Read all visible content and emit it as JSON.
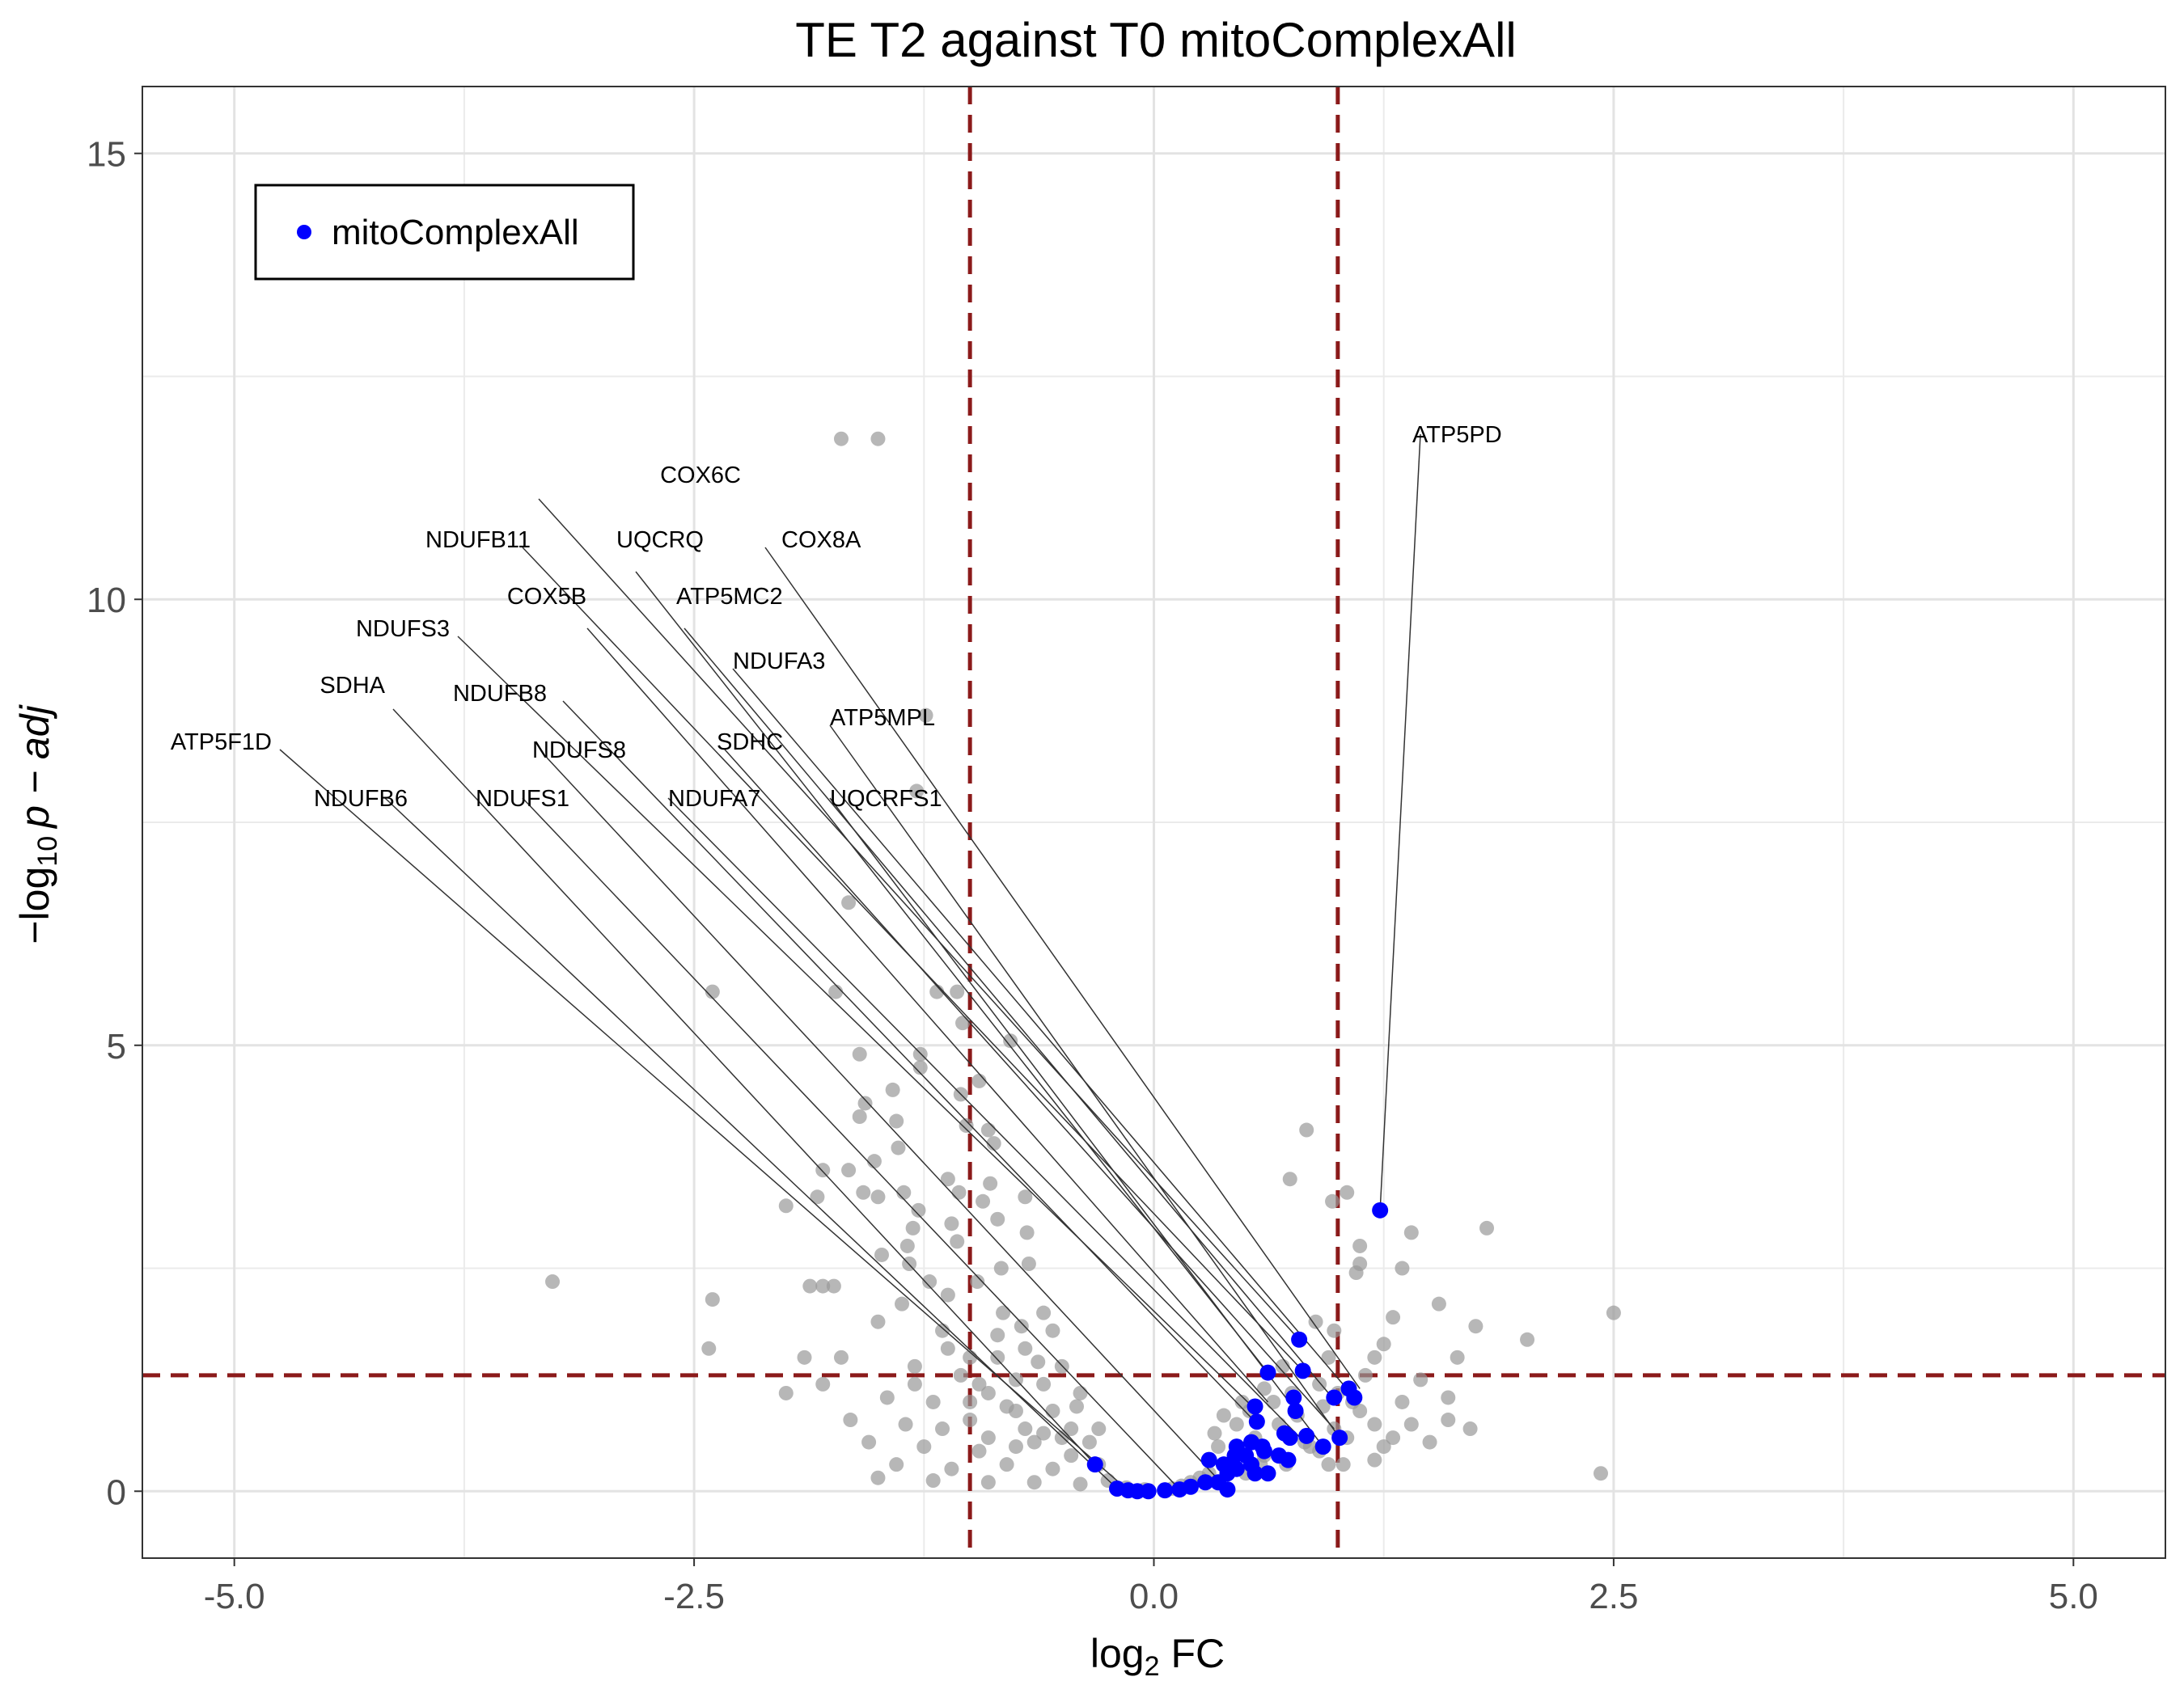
{
  "chart_data": {
    "type": "scatter",
    "title": "TE T2 against T0 mitoComplexAll",
    "xlabel": {
      "main": "log",
      "sub": "2",
      "rest": " FC"
    },
    "ylabel": {
      "prefix": "−log",
      "sub": "10",
      "italic": "p − adj"
    },
    "xlim": [
      -5.5,
      5.5
    ],
    "ylim": [
      -0.75,
      15.75
    ],
    "x_ticks": [
      {
        "value": -5,
        "label": "-5.0"
      },
      {
        "value": -2.5,
        "label": "-2.5"
      },
      {
        "value": 0,
        "label": "0.0"
      },
      {
        "value": 2.5,
        "label": "2.5"
      },
      {
        "value": 5,
        "label": "5.0"
      }
    ],
    "y_ticks": [
      {
        "value": 0,
        "label": "0"
      },
      {
        "value": 5,
        "label": "5"
      },
      {
        "value": 10,
        "label": "10"
      },
      {
        "value": 15,
        "label": "15"
      }
    ],
    "grid": true,
    "thresholds": {
      "fc": [
        -1,
        1
      ],
      "p": 1.3,
      "color": "#8b1a1a"
    },
    "legend": {
      "position": "top-left",
      "entries": [
        {
          "label": "mitoComplexAll",
          "color": "#0000ff"
        }
      ]
    },
    "series": [
      {
        "name": "background",
        "color": "#999999",
        "points": [
          [
            -1.7,
            11.8
          ],
          [
            -1.5,
            11.8
          ],
          [
            -1.24,
            8.7
          ],
          [
            -1.29,
            7.85
          ],
          [
            -1.66,
            6.6
          ],
          [
            -2.4,
            5.6
          ],
          [
            -1.73,
            5.6
          ],
          [
            -1.18,
            5.6
          ],
          [
            -1.07,
            5.6
          ],
          [
            -0.78,
            5.05
          ],
          [
            -1.04,
            5.25
          ],
          [
            -1.6,
            4.9
          ],
          [
            -1.27,
            4.9
          ],
          [
            -1.27,
            4.75
          ],
          [
            -1.42,
            4.5
          ],
          [
            -1.05,
            4.45
          ],
          [
            -0.95,
            4.6
          ],
          [
            -1.57,
            4.35
          ],
          [
            -1.6,
            4.2
          ],
          [
            -1.4,
            4.15
          ],
          [
            -1.02,
            4.1
          ],
          [
            -0.9,
            4.05
          ],
          [
            -0.87,
            3.9
          ],
          [
            -1.39,
            3.85
          ],
          [
            -1.52,
            3.7
          ],
          [
            -1.8,
            3.6
          ],
          [
            -1.66,
            3.6
          ],
          [
            -1.12,
            3.5
          ],
          [
            -0.89,
            3.45
          ],
          [
            -1.5,
            3.3
          ],
          [
            -1.36,
            3.35
          ],
          [
            -1.06,
            3.35
          ],
          [
            -0.93,
            3.25
          ],
          [
            -0.7,
            3.3
          ],
          [
            -2.0,
            3.2
          ],
          [
            -1.83,
            3.3
          ],
          [
            -1.58,
            3.35
          ],
          [
            -1.28,
            3.15
          ],
          [
            -0.85,
            3.05
          ],
          [
            -1.31,
            2.95
          ],
          [
            -1.1,
            3.0
          ],
          [
            -0.69,
            2.9
          ],
          [
            -1.34,
            2.75
          ],
          [
            -1.07,
            2.8
          ],
          [
            -1.48,
            2.65
          ],
          [
            -1.33,
            2.55
          ],
          [
            -0.83,
            2.5
          ],
          [
            -1.22,
            2.35
          ],
          [
            -0.96,
            2.35
          ],
          [
            -1.87,
            2.3
          ],
          [
            -1.8,
            2.3
          ],
          [
            -1.74,
            2.3
          ],
          [
            -1.37,
            2.1
          ],
          [
            -1.12,
            2.2
          ],
          [
            -0.68,
            2.55
          ],
          [
            -0.6,
            2.0
          ],
          [
            -2.4,
            2.15
          ],
          [
            -3.27,
            2.35
          ],
          [
            -2.42,
            1.6
          ],
          [
            -1.5,
            1.9
          ],
          [
            -1.15,
            1.8
          ],
          [
            -0.85,
            1.75
          ],
          [
            -0.55,
            1.8
          ],
          [
            -1.9,
            1.5
          ],
          [
            -1.7,
            1.5
          ],
          [
            -1.3,
            1.4
          ],
          [
            -1.05,
            1.3
          ],
          [
            -0.5,
            1.4
          ],
          [
            -2.0,
            1.1
          ],
          [
            -1.8,
            1.2
          ],
          [
            -1.45,
            1.05
          ],
          [
            -1.2,
            1.0
          ],
          [
            -0.9,
            1.1
          ],
          [
            -0.4,
            1.1
          ],
          [
            -1.65,
            0.8
          ],
          [
            -1.35,
            0.75
          ],
          [
            -1.0,
            0.8
          ],
          [
            -0.75,
            0.9
          ],
          [
            -0.3,
            0.7
          ],
          [
            -1.55,
            0.55
          ],
          [
            -1.25,
            0.5
          ],
          [
            -0.95,
            0.45
          ],
          [
            -0.65,
            0.55
          ],
          [
            -0.45,
            0.4
          ],
          [
            -1.4,
            0.3
          ],
          [
            -1.1,
            0.25
          ],
          [
            -0.8,
            0.3
          ],
          [
            -0.55,
            0.25
          ],
          [
            -0.3,
            0.3
          ],
          [
            -1.5,
            0.15
          ],
          [
            -1.2,
            0.12
          ],
          [
            -0.9,
            0.1
          ],
          [
            -0.65,
            0.1
          ],
          [
            -0.4,
            0.08
          ],
          [
            -0.25,
            0.12
          ],
          [
            -0.15,
            0.04
          ],
          [
            -0.05,
            0.02
          ],
          [
            -0.85,
            1.5
          ],
          [
            -0.7,
            1.6
          ],
          [
            -0.6,
            1.2
          ],
          [
            -1.0,
            1.5
          ],
          [
            -0.75,
            1.25
          ],
          [
            -0.9,
            0.6
          ],
          [
            -0.7,
            0.7
          ],
          [
            -0.6,
            0.65
          ],
          [
            -0.5,
            0.6
          ],
          [
            -0.55,
            0.9
          ],
          [
            -0.8,
            0.95
          ],
          [
            -1.15,
            0.7
          ],
          [
            -1.0,
            1.0
          ],
          [
            -0.95,
            1.2
          ],
          [
            -0.75,
            0.5
          ],
          [
            -0.45,
            0.7
          ],
          [
            -1.3,
            1.2
          ],
          [
            -1.12,
            1.6
          ],
          [
            -0.82,
            2.0
          ],
          [
            -0.72,
            1.85
          ],
          [
            -0.63,
            1.45
          ],
          [
            -0.42,
            0.95
          ],
          [
            -0.35,
            0.55
          ],
          [
            0.83,
            4.05
          ],
          [
            0.74,
            3.5
          ],
          [
            0.97,
            3.25
          ],
          [
            1.05,
            3.35
          ],
          [
            1.12,
            2.55
          ],
          [
            1.12,
            2.75
          ],
          [
            1.1,
            2.45
          ],
          [
            1.4,
            2.9
          ],
          [
            1.81,
            2.95
          ],
          [
            1.35,
            2.5
          ],
          [
            1.55,
            2.1
          ],
          [
            1.75,
            1.85
          ],
          [
            1.65,
            1.5
          ],
          [
            2.5,
            2.0
          ],
          [
            2.03,
            1.7
          ],
          [
            2.43,
            0.2
          ],
          [
            1.3,
            1.95
          ],
          [
            1.25,
            1.65
          ],
          [
            1.2,
            1.5
          ],
          [
            1.15,
            1.3
          ],
          [
            1.45,
            1.25
          ],
          [
            1.35,
            1.0
          ],
          [
            1.6,
            1.05
          ],
          [
            1.6,
            0.8
          ],
          [
            1.3,
            0.6
          ],
          [
            1.5,
            0.55
          ],
          [
            1.72,
            0.7
          ],
          [
            1.12,
            0.9
          ],
          [
            1.2,
            0.75
          ],
          [
            1.05,
            0.6
          ],
          [
            1.03,
            0.3
          ],
          [
            1.2,
            0.35
          ],
          [
            0.98,
            1.8
          ],
          [
            0.95,
            1.5
          ],
          [
            0.88,
            1.9
          ],
          [
            0.9,
            1.2
          ],
          [
            0.92,
            0.95
          ],
          [
            0.98,
            0.7
          ],
          [
            0.95,
            0.3
          ],
          [
            0.82,
            0.55
          ],
          [
            0.75,
            1.1
          ],
          [
            0.68,
            0.75
          ],
          [
            0.6,
            0.4
          ],
          [
            0.55,
            0.6
          ],
          [
            0.52,
            0.9
          ],
          [
            0.45,
            0.45
          ],
          [
            0.4,
            0.3
          ],
          [
            0.35,
            0.5
          ],
          [
            0.3,
            0.2
          ],
          [
            0.25,
            0.15
          ],
          [
            0.2,
            0.1
          ],
          [
            0.15,
            0.06
          ],
          [
            0.1,
            0.03
          ],
          [
            0.7,
            1.4
          ],
          [
            0.6,
            1.15
          ],
          [
            0.45,
            0.75
          ],
          [
            0.38,
            0.85
          ],
          [
            0.85,
            0.5
          ],
          [
            0.72,
            0.3
          ],
          [
            0.5,
            0.2
          ],
          [
            1.0,
            1.1
          ],
          [
            1.08,
            1.0
          ],
          [
            0.78,
            0.85
          ],
          [
            0.65,
            1.0
          ],
          [
            0.58,
            0.3
          ],
          [
            0.9,
            0.45
          ],
          [
            1.25,
            0.5
          ],
          [
            1.4,
            0.75
          ],
          [
            0.48,
            1.0
          ],
          [
            0.33,
            0.65
          ]
        ]
      },
      {
        "name": "mitoComplexAll",
        "color": "#0000ff",
        "points": [
          [
            1.23,
            3.15
          ],
          [
            0.79,
            1.7
          ],
          [
            0.81,
            1.35
          ],
          [
            0.62,
            1.33
          ],
          [
            0.76,
            1.05
          ],
          [
            0.98,
            1.05
          ],
          [
            1.06,
            1.15
          ],
          [
            1.09,
            1.05
          ],
          [
            0.55,
            0.95
          ],
          [
            0.77,
            0.9
          ],
          [
            0.56,
            0.78
          ],
          [
            0.71,
            0.65
          ],
          [
            0.74,
            0.6
          ],
          [
            0.83,
            0.62
          ],
          [
            0.92,
            0.5
          ],
          [
            1.01,
            0.6
          ],
          [
            0.45,
            0.5
          ],
          [
            0.53,
            0.55
          ],
          [
            0.59,
            0.5
          ],
          [
            0.44,
            0.4
          ],
          [
            0.5,
            0.4
          ],
          [
            0.6,
            0.45
          ],
          [
            0.68,
            0.4
          ],
          [
            0.73,
            0.35
          ],
          [
            0.53,
            0.3
          ],
          [
            0.38,
            0.3
          ],
          [
            0.3,
            0.35
          ],
          [
            0.4,
            0.2
          ],
          [
            0.45,
            0.25
          ],
          [
            0.55,
            0.2
          ],
          [
            0.62,
            0.2
          ],
          [
            0.35,
            0.1
          ],
          [
            0.28,
            0.1
          ],
          [
            0.2,
            0.05
          ],
          [
            0.14,
            0.02
          ],
          [
            0.06,
            0.01
          ],
          [
            -0.03,
            0.0
          ],
          [
            -0.09,
            0.0
          ],
          [
            -0.14,
            0.01
          ],
          [
            -0.2,
            0.03
          ],
          [
            -0.32,
            0.3
          ],
          [
            0.4,
            0.02
          ]
        ]
      }
    ],
    "annotations": [
      {
        "text": "ATP5PD",
        "point": [
          1.23,
          3.15
        ],
        "lx": 2.57,
        "ly": 1.44,
        "anchor": "start",
        "cx": 2.58,
        "cy": 1.43
      },
      {
        "text": "COX6C",
        "point": [
          0.79,
          1.7
        ],
        "lx": 1.74,
        "ly": 1.49,
        "anchor": "end",
        "cx": 1.49,
        "cy": 1.51
      },
      {
        "text": "NDUFB11",
        "point": [
          0.81,
          1.35
        ],
        "lx": 1.48,
        "ly": 1.57,
        "anchor": "end",
        "cx": 1.47,
        "cy": 1.57
      },
      {
        "text": "UQCRQ",
        "point": [
          0.62,
          1.33
        ],
        "lx": 1.64,
        "ly": 1.57,
        "anchor": "middle",
        "cx": 1.61,
        "cy": 1.6
      },
      {
        "text": "COX8A",
        "point": [
          1.12,
          1.15
        ],
        "lx": 1.79,
        "ly": 1.57,
        "anchor": "start",
        "cx": 1.77,
        "cy": 1.57
      },
      {
        "text": "COX5B",
        "point": [
          0.62,
          1.0
        ],
        "lx": 1.5,
        "ly": 1.64,
        "anchor": "middle",
        "cx": 1.55,
        "cy": 1.67
      },
      {
        "text": "ATP5MC2",
        "point": [
          0.97,
          1.05
        ],
        "lx": 1.66,
        "ly": 1.64,
        "anchor": "start",
        "cx": 1.67,
        "cy": 1.67
      },
      {
        "text": "NDUFS3",
        "point": [
          0.56,
          0.9
        ],
        "lx": 1.38,
        "ly": 1.68,
        "anchor": "end",
        "cx": 1.39,
        "cy": 1.68
      },
      {
        "text": "NDUFA3",
        "point": [
          1.09,
          1.05
        ],
        "lx": 1.73,
        "ly": 1.72,
        "anchor": "start",
        "cx": 1.73,
        "cy": 1.72
      },
      {
        "text": "NDUFB8",
        "point": [
          0.55,
          0.78
        ],
        "lx": 1.5,
        "ly": 1.76,
        "anchor": "end",
        "cx": 1.52,
        "cy": 1.76
      },
      {
        "text": "SDHA",
        "point": [
          -0.32,
          0.3
        ],
        "lx": 1.3,
        "ly": 1.75,
        "anchor": "end",
        "cx": 1.31,
        "cy": 1.77
      },
      {
        "text": "ATP5MPL",
        "point": [
          1.01,
          0.6
        ],
        "lx": 1.85,
        "ly": 1.79,
        "anchor": "start",
        "cx": 1.85,
        "cy": 1.79
      },
      {
        "text": "SDHC",
        "point": [
          0.98,
          0.7
        ],
        "lx": 1.71,
        "ly": 1.82,
        "anchor": "start",
        "cx": 1.72,
        "cy": 1.82
      },
      {
        "text": "ATP5F1D",
        "point": [
          -0.14,
          0.01
        ],
        "lx": 1.16,
        "ly": 1.82,
        "anchor": "end",
        "cx": 1.17,
        "cy": 1.82
      },
      {
        "text": "NDUFS8",
        "point": [
          0.4,
          0.02
        ],
        "lx": 1.54,
        "ly": 1.83,
        "anchor": "middle",
        "cx": 1.5,
        "cy": 1.83
      },
      {
        "text": "NDUFB6",
        "point": [
          -0.2,
          0.03
        ],
        "lx": 1.27,
        "ly": 1.89,
        "anchor": "middle",
        "cx": 1.3,
        "cy": 1.88
      },
      {
        "text": "NDUFS1",
        "point": [
          0.14,
          0.02
        ],
        "lx": 1.47,
        "ly": 1.89,
        "anchor": "middle",
        "cx": 1.47,
        "cy": 1.88
      },
      {
        "text": "NDUFA7",
        "point": [
          0.82,
          0.55
        ],
        "lx": 1.65,
        "ly": 1.89,
        "anchor": "start",
        "cx": 1.65,
        "cy": 1.88
      },
      {
        "text": "UQCRFS1",
        "point": [
          0.92,
          0.5
        ],
        "lx": 1.85,
        "ly": 1.89,
        "anchor": "start",
        "cx": 1.85,
        "cy": 1.88
      }
    ]
  }
}
